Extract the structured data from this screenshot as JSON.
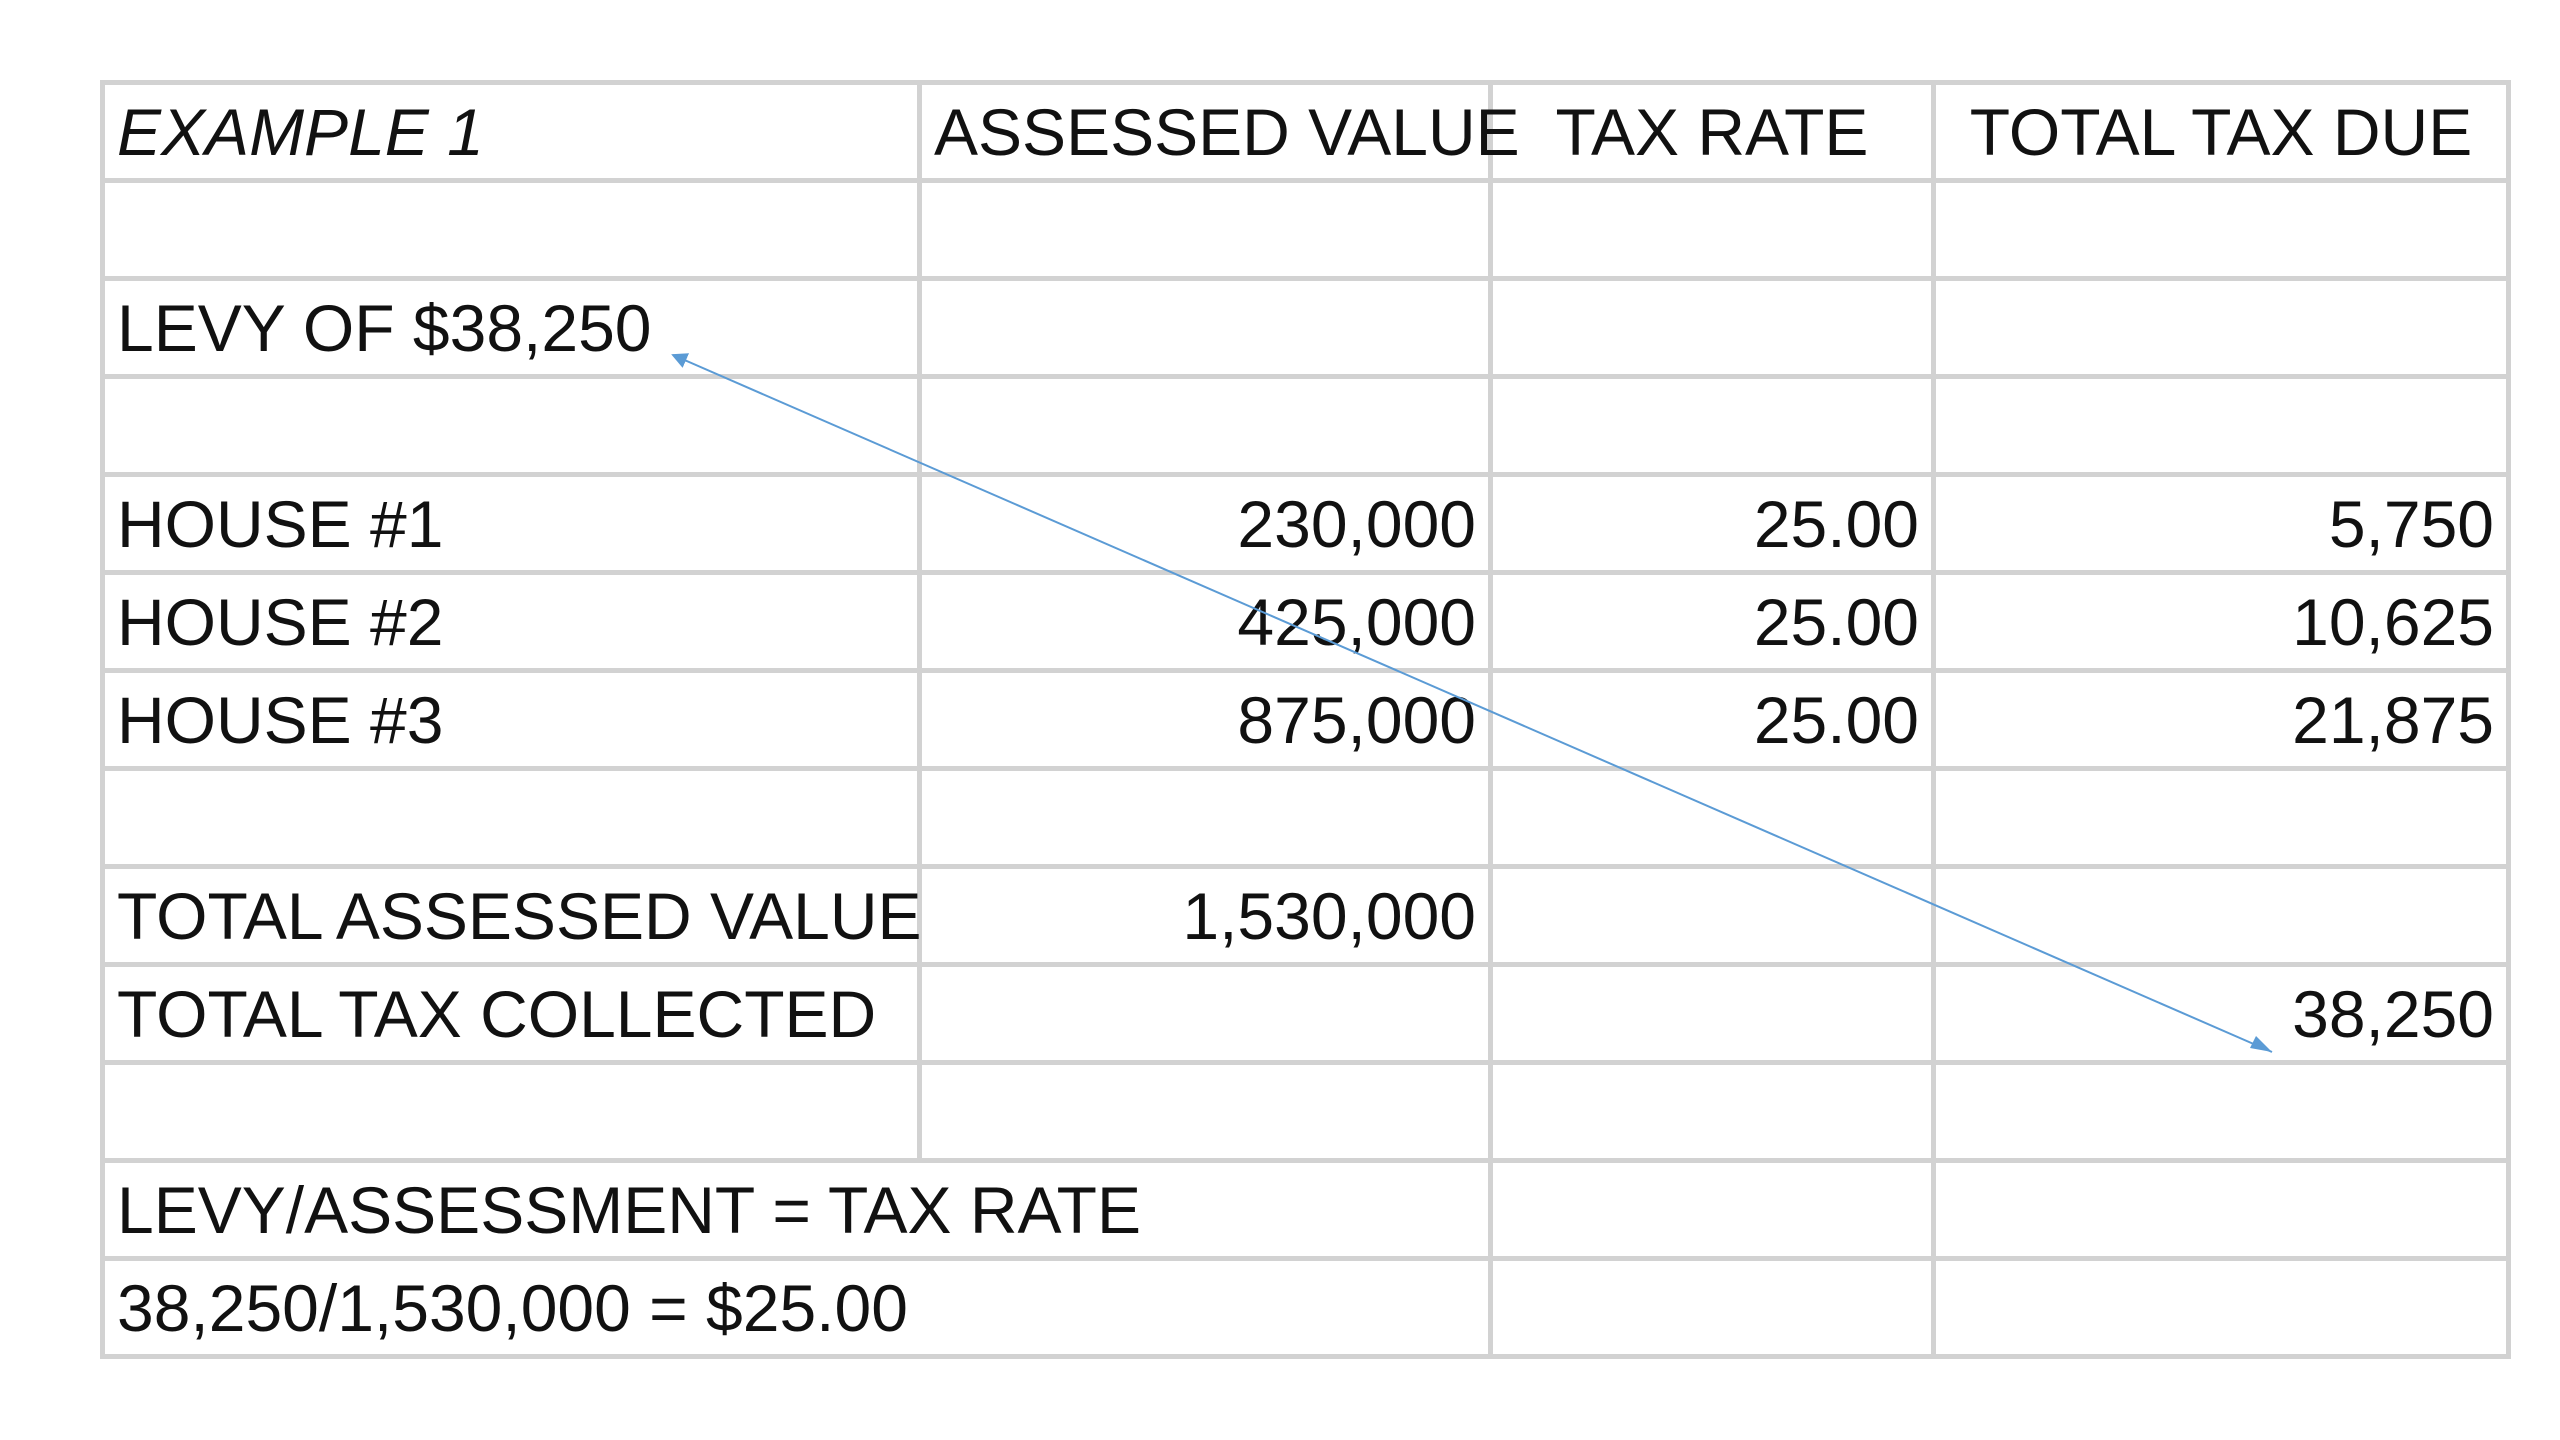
{
  "table": {
    "header": {
      "example_label": "EXAMPLE 1",
      "col_assessed": "ASSESSED VALUE",
      "col_rate": "TAX RATE",
      "col_total": "TOTAL TAX DUE"
    },
    "levy_label": "LEVY OF $38,250",
    "houses": [
      {
        "label": "HOUSE #1",
        "assessed": "230,000",
        "rate": "25.00",
        "due": "5,750"
      },
      {
        "label": "HOUSE #2",
        "assessed": "425,000",
        "rate": "25.00",
        "due": "10,625"
      },
      {
        "label": "HOUSE #3",
        "assessed": "875,000",
        "rate": "25.00",
        "due": "21,875"
      }
    ],
    "total_assessed_label": "TOTAL ASSESSED VALUE",
    "total_assessed_value": "1,530,000",
    "total_collected_label": "TOTAL TAX COLLECTED",
    "total_collected_value": "38,250",
    "formula_label": "LEVY/ASSESSMENT = TAX RATE",
    "formula_calc": "38,250/1,530,000 = $25.00"
  },
  "colors": {
    "gridline": "#d2d2d2",
    "arrow": "#5b9bd5",
    "text": "#111111"
  }
}
